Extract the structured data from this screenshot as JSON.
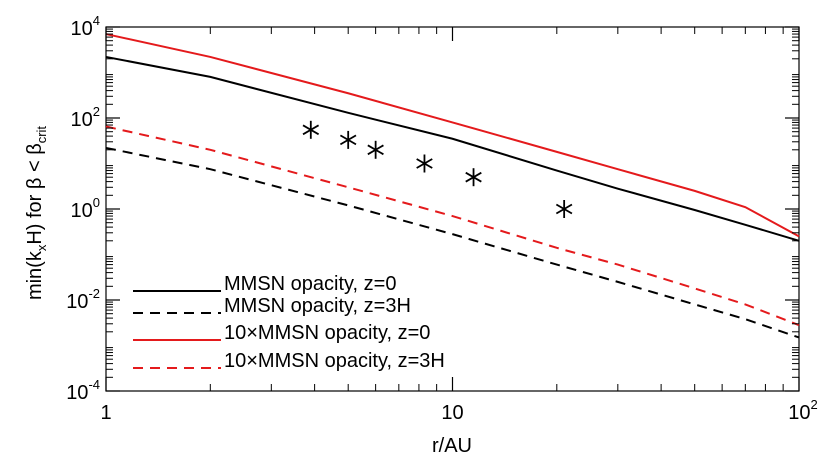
{
  "chart_data": {
    "type": "line",
    "xscale": "log",
    "yscale": "log",
    "xlim": [
      1,
      100
    ],
    "ylim": [
      0.0001,
      10000
    ],
    "xlabel": {
      "base": "r/AU"
    },
    "ylabel": {
      "pre": "min(k",
      "sub1": "x",
      "mid": "H) for β < β",
      "sub2": "crit"
    },
    "x_ticks": [
      {
        "value": 1,
        "label": "1",
        "exp": ""
      },
      {
        "value": 10,
        "label": "10",
        "exp": ""
      },
      {
        "value": 100,
        "label": "10",
        "exp": "2"
      }
    ],
    "y_ticks": [
      {
        "value": 0.0001,
        "label": "10",
        "exp": "-4"
      },
      {
        "value": 0.01,
        "label": "10",
        "exp": "-2"
      },
      {
        "value": 1,
        "label": "10",
        "exp": "0"
      },
      {
        "value": 100,
        "label": "10",
        "exp": "2"
      },
      {
        "value": 10000,
        "label": "10",
        "exp": "4"
      }
    ],
    "grid": false,
    "legend_position": "bottom-left",
    "series": [
      {
        "name": "MMSN opacity, z=0",
        "color": "#000000",
        "dash": "solid",
        "points": [
          [
            1,
            2200
          ],
          [
            2,
            800
          ],
          [
            5,
            130
          ],
          [
            10,
            35
          ],
          [
            20,
            7.0
          ],
          [
            30,
            2.8
          ],
          [
            50,
            0.95
          ],
          [
            70,
            0.45
          ],
          [
            100,
            0.2
          ]
        ]
      },
      {
        "name": "MMSN opacity, z=3H",
        "color": "#000000",
        "dash": "dashed",
        "points": [
          [
            1,
            22
          ],
          [
            2,
            7.5
          ],
          [
            5,
            1.2
          ],
          [
            10,
            0.28
          ],
          [
            20,
            0.06
          ],
          [
            30,
            0.025
          ],
          [
            50,
            0.008
          ],
          [
            70,
            0.0038
          ],
          [
            100,
            0.0015
          ]
        ]
      },
      {
        "name": "10×MMSN opacity, z=0",
        "color": "#e41a1c",
        "dash": "solid",
        "points": [
          [
            1,
            7000
          ],
          [
            2,
            2200
          ],
          [
            5,
            350
          ],
          [
            10,
            80
          ],
          [
            20,
            18
          ],
          [
            30,
            7.5
          ],
          [
            50,
            2.5
          ],
          [
            70,
            1.1
          ],
          [
            100,
            0.25
          ]
        ]
      },
      {
        "name": "10×MMSN opacity, z=3H",
        "color": "#e41a1c",
        "dash": "dashed",
        "points": [
          [
            1,
            65
          ],
          [
            2,
            20
          ],
          [
            5,
            3.0
          ],
          [
            10,
            0.7
          ],
          [
            20,
            0.14
          ],
          [
            30,
            0.06
          ],
          [
            50,
            0.018
          ],
          [
            70,
            0.008
          ],
          [
            100,
            0.0028
          ]
        ]
      }
    ],
    "markers": {
      "symbol": "asterisk",
      "color": "#000000",
      "points": [
        [
          3.9,
          55
        ],
        [
          5.0,
          33
        ],
        [
          6.0,
          20
        ],
        [
          8.3,
          10
        ],
        [
          11.5,
          5
        ],
        [
          21,
          1
        ]
      ]
    }
  }
}
